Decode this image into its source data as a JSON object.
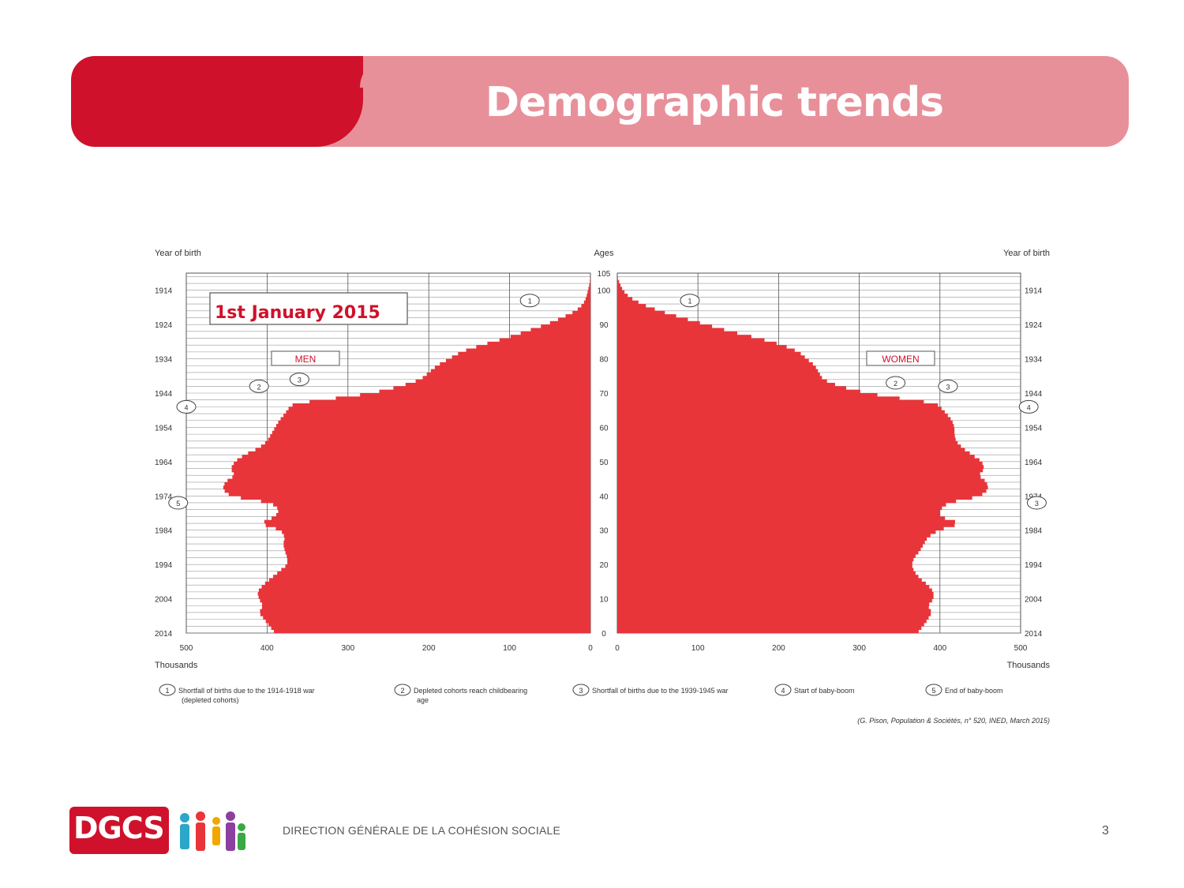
{
  "slide": {
    "title": "Demographic trends",
    "org_name": "DIRECTION GÉNÉRALE DE LA COHÉSION SOCIALE",
    "logo_text": "DGCS",
    "page_number": "3",
    "colors": {
      "brand_red": "#d0112b",
      "banner_pink": "#e8909a",
      "bar_red": "#e8353a"
    }
  },
  "chart_data": {
    "type": "bar",
    "subtype": "population-pyramid",
    "title": "1st January 2015",
    "left_label": "MEN",
    "right_label": "WOMEN",
    "y_left_label": "Year of birth",
    "y_right_label": "Year of birth",
    "center_axis_label": "Ages",
    "x_unit_label": "Thousands",
    "x_ticks_left": [
      "500",
      "400",
      "300",
      "200",
      "100",
      "0"
    ],
    "x_ticks_right": [
      "0",
      "100",
      "200",
      "300",
      "400",
      "500"
    ],
    "xlim": [
      0,
      500
    ],
    "age_ticks": [
      "0",
      "10",
      "20",
      "30",
      "40",
      "50",
      "60",
      "70",
      "80",
      "90",
      "100",
      "105"
    ],
    "year_ticks": [
      "2014",
      "2004",
      "1994",
      "1984",
      "1974",
      "1964",
      "1954",
      "1944",
      "1934",
      "1924",
      "1914"
    ],
    "ylim": [
      0,
      105
    ],
    "men_profile": [
      [
        0,
        390
      ],
      [
        3,
        400
      ],
      [
        6,
        410
      ],
      [
        8,
        405
      ],
      [
        10,
        410
      ],
      [
        12,
        412
      ],
      [
        14,
        405
      ],
      [
        16,
        395
      ],
      [
        18,
        385
      ],
      [
        20,
        375
      ],
      [
        22,
        375
      ],
      [
        24,
        378
      ],
      [
        26,
        380
      ],
      [
        28,
        378
      ],
      [
        30,
        383
      ],
      [
        32,
        408
      ],
      [
        34,
        390
      ],
      [
        36,
        385
      ],
      [
        38,
        395
      ],
      [
        40,
        445
      ],
      [
        42,
        455
      ],
      [
        44,
        452
      ],
      [
        46,
        440
      ],
      [
        48,
        445
      ],
      [
        50,
        440
      ],
      [
        52,
        428
      ],
      [
        54,
        410
      ],
      [
        56,
        400
      ],
      [
        58,
        395
      ],
      [
        60,
        390
      ],
      [
        62,
        385
      ],
      [
        64,
        378
      ],
      [
        66,
        372
      ],
      [
        67,
        365
      ],
      [
        68,
        330
      ],
      [
        69,
        300
      ],
      [
        70,
        270
      ],
      [
        72,
        235
      ],
      [
        74,
        210
      ],
      [
        76,
        200
      ],
      [
        78,
        190
      ],
      [
        80,
        175
      ],
      [
        82,
        160
      ],
      [
        84,
        135
      ],
      [
        86,
        105
      ],
      [
        88,
        80
      ],
      [
        90,
        55
      ],
      [
        92,
        35
      ],
      [
        94,
        18
      ],
      [
        96,
        9
      ],
      [
        98,
        5
      ],
      [
        100,
        3
      ],
      [
        102,
        1
      ],
      [
        104,
        0
      ]
    ],
    "women_profile": [
      [
        0,
        372
      ],
      [
        3,
        382
      ],
      [
        6,
        390
      ],
      [
        8,
        385
      ],
      [
        10,
        392
      ],
      [
        12,
        392
      ],
      [
        14,
        385
      ],
      [
        16,
        375
      ],
      [
        18,
        368
      ],
      [
        20,
        365
      ],
      [
        22,
        368
      ],
      [
        24,
        375
      ],
      [
        26,
        380
      ],
      [
        28,
        385
      ],
      [
        30,
        398
      ],
      [
        32,
        425
      ],
      [
        34,
        400
      ],
      [
        36,
        400
      ],
      [
        38,
        410
      ],
      [
        40,
        450
      ],
      [
        42,
        460
      ],
      [
        44,
        458
      ],
      [
        46,
        448
      ],
      [
        48,
        455
      ],
      [
        50,
        452
      ],
      [
        52,
        440
      ],
      [
        54,
        428
      ],
      [
        56,
        420
      ],
      [
        58,
        418
      ],
      [
        60,
        418
      ],
      [
        62,
        415
      ],
      [
        64,
        408
      ],
      [
        66,
        400
      ],
      [
        67,
        395
      ],
      [
        68,
        365
      ],
      [
        69,
        335
      ],
      [
        70,
        310
      ],
      [
        72,
        275
      ],
      [
        74,
        255
      ],
      [
        76,
        250
      ],
      [
        78,
        245
      ],
      [
        80,
        235
      ],
      [
        82,
        225
      ],
      [
        84,
        205
      ],
      [
        86,
        175
      ],
      [
        88,
        140
      ],
      [
        90,
        110
      ],
      [
        92,
        80
      ],
      [
        94,
        52
      ],
      [
        96,
        30
      ],
      [
        98,
        15
      ],
      [
        100,
        7
      ],
      [
        102,
        3
      ],
      [
        104,
        0
      ]
    ],
    "callouts": [
      {
        "num": "1",
        "side": "men",
        "age": 97,
        "value": 75
      },
      {
        "num": "1",
        "side": "women",
        "age": 97,
        "value": 90
      },
      {
        "num": "2",
        "side": "men",
        "age": 72,
        "value": 410
      },
      {
        "num": "3",
        "side": "men",
        "age": 74,
        "value": 360
      },
      {
        "num": "4",
        "side": "men",
        "age": 66,
        "value": 500
      },
      {
        "num": "5",
        "side": "men",
        "age": 38,
        "value": 510
      },
      {
        "num": "2",
        "side": "women",
        "age": 73,
        "value": 345
      },
      {
        "num": "3",
        "side": "women",
        "age": 72,
        "value": 410
      },
      {
        "num": "4",
        "side": "women",
        "age": 66,
        "value": 510
      },
      {
        "num": "3",
        "side": "women",
        "age": 38,
        "value": 520
      }
    ],
    "legend": [
      {
        "num": "1",
        "text": "Shortfall of births due to the 1914-1918 war (depleted cohorts)"
      },
      {
        "num": "2",
        "text": "Depleted cohorts reach childbearing age"
      },
      {
        "num": "3",
        "text": "Shortfall of births due to the 1939-1945 war"
      },
      {
        "num": "4",
        "text": "Start of baby-boom"
      },
      {
        "num": "5",
        "text": "End of baby-boom"
      }
    ],
    "source": "(G. Pison, Population & Sociétés, n° 520, INED, March 2015)"
  }
}
